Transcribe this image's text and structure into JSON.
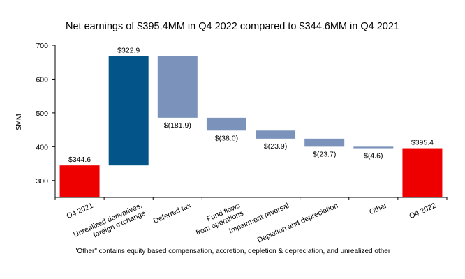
{
  "chart_data": {
    "type": "waterfall",
    "title": "Net earnings of $395.4MM in Q4 2022 compared to $344.6MM in Q4 2021",
    "ylabel": "$MM",
    "xlabel": "",
    "ylim": [
      250,
      700
    ],
    "yticks": [
      300,
      400,
      500,
      600,
      700
    ],
    "categories": [
      [
        "Q4 2021"
      ],
      [
        "Unrealized derivatives,",
        "foreign exchange"
      ],
      [
        "Deferred tax"
      ],
      [
        "Fund flows",
        "from operations"
      ],
      [
        "Impairment reversal"
      ],
      [
        "Depletion and depreciation"
      ],
      [
        "Other"
      ],
      [
        "Q4 2022"
      ]
    ],
    "bars": [
      {
        "kind": "total",
        "start": 0,
        "end": 344.6,
        "label": "$344.6",
        "color": "#ee0000"
      },
      {
        "kind": "increase",
        "start": 344.6,
        "end": 667.5,
        "label": "$322.9",
        "color": "#035488"
      },
      {
        "kind": "decrease",
        "start": 667.5,
        "end": 485.6,
        "label": "$(181.9)",
        "color": "#7b93bb"
      },
      {
        "kind": "decrease",
        "start": 485.6,
        "end": 447.6,
        "label": "$(38.0)",
        "color": "#7b93bb"
      },
      {
        "kind": "decrease",
        "start": 447.6,
        "end": 423.7,
        "label": "$(23.9)",
        "color": "#7b93bb"
      },
      {
        "kind": "decrease",
        "start": 423.7,
        "end": 400.0,
        "label": "$(23.7)",
        "color": "#7b93bb"
      },
      {
        "kind": "decrease",
        "start": 400.0,
        "end": 395.4,
        "label": "$(4.6)",
        "color": "#7b93bb"
      },
      {
        "kind": "total",
        "start": 0,
        "end": 395.4,
        "label": "$395.4",
        "color": "#ee0000"
      }
    ],
    "grid": false,
    "legend": "none"
  },
  "footnote": "\"Other\" contains equity based compensation, accretion, depletion & depreciation, and unrealized other"
}
